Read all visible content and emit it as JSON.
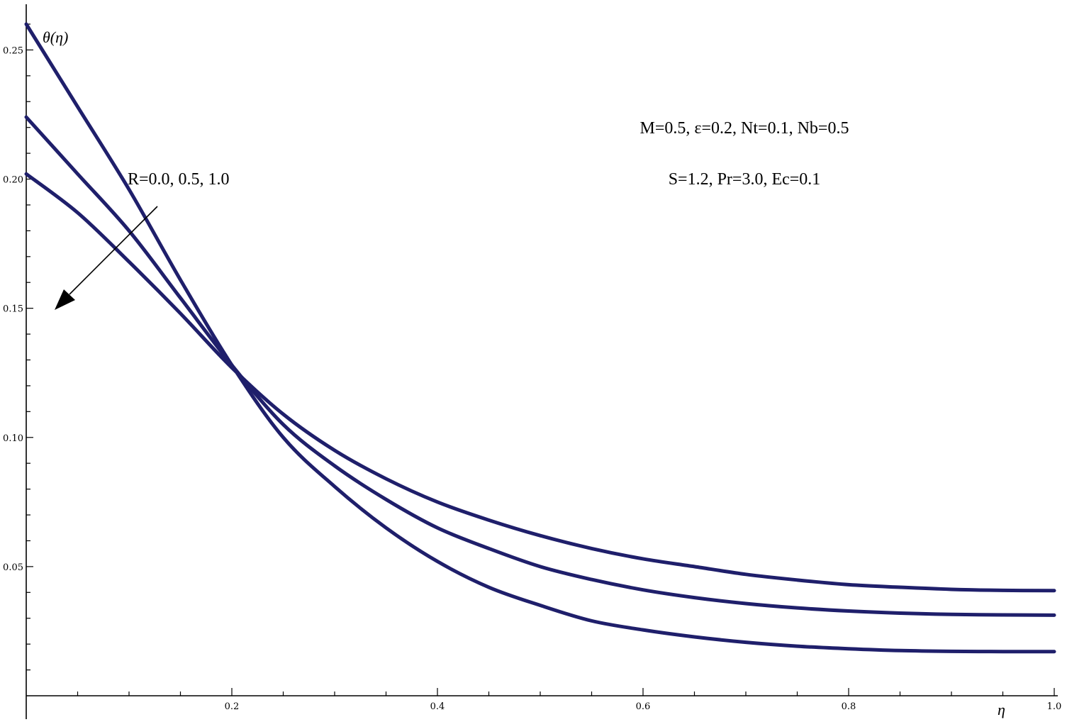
{
  "chart_data": {
    "type": "line",
    "title": "",
    "xlabel": "η",
    "ylabel": "θ(η)",
    "xlim": [
      0,
      1.0
    ],
    "ylim": [
      0,
      0.26
    ],
    "grid": false,
    "x_ticks": [
      "0.2",
      "0.4",
      "0.6",
      "0.8",
      "1.0"
    ],
    "y_ticks": [
      "0.05",
      "0.10",
      "0.15",
      "0.20",
      "0.25"
    ],
    "series_color": "#1f1f6b",
    "series": [
      {
        "x": [
          0,
          0.05,
          0.1,
          0.15,
          0.2,
          0.25,
          0.3,
          0.35,
          0.4,
          0.45,
          0.5,
          0.55,
          0.6,
          0.65,
          0.7,
          0.75,
          0.8,
          0.85,
          0.9,
          0.95,
          1.0
        ],
        "values": [
          0.26,
          0.228,
          0.196,
          0.161,
          0.128,
          0.1,
          0.081,
          0.065,
          0.052,
          0.042,
          0.035,
          0.029,
          0.0255,
          0.0228,
          0.0207,
          0.0192,
          0.0182,
          0.0175,
          0.0172,
          0.0171,
          0.0171
        ]
      },
      {
        "x": [
          0,
          0.05,
          0.1,
          0.15,
          0.2,
          0.25,
          0.3,
          0.35,
          0.4,
          0.45,
          0.5,
          0.55,
          0.6,
          0.65,
          0.7,
          0.75,
          0.8,
          0.85,
          0.9,
          0.95,
          1.0
        ],
        "values": [
          0.224,
          0.202,
          0.18,
          0.154,
          0.128,
          0.105,
          0.089,
          0.076,
          0.065,
          0.057,
          0.05,
          0.045,
          0.041,
          0.038,
          0.0357,
          0.034,
          0.0328,
          0.032,
          0.0315,
          0.0313,
          0.0312
        ]
      },
      {
        "x": [
          0,
          0.05,
          0.1,
          0.15,
          0.2,
          0.25,
          0.3,
          0.35,
          0.4,
          0.45,
          0.5,
          0.55,
          0.6,
          0.65,
          0.7,
          0.75,
          0.8,
          0.85,
          0.9,
          0.95,
          1.0
        ],
        "values": [
          0.202,
          0.187,
          0.168,
          0.148,
          0.127,
          0.109,
          0.095,
          0.084,
          0.075,
          0.068,
          0.062,
          0.057,
          0.053,
          0.05,
          0.047,
          0.0448,
          0.043,
          0.042,
          0.0412,
          0.0408,
          0.0407
        ]
      }
    ],
    "annotations": {
      "param_label": "R=0.0, 0.5, 1.0",
      "params_line1": "M=0.5, ε=0.2, Nt=0.1, Nb=0.5",
      "params_line2": "S=1.2, Pr=3.0, Ec=0.1"
    }
  }
}
